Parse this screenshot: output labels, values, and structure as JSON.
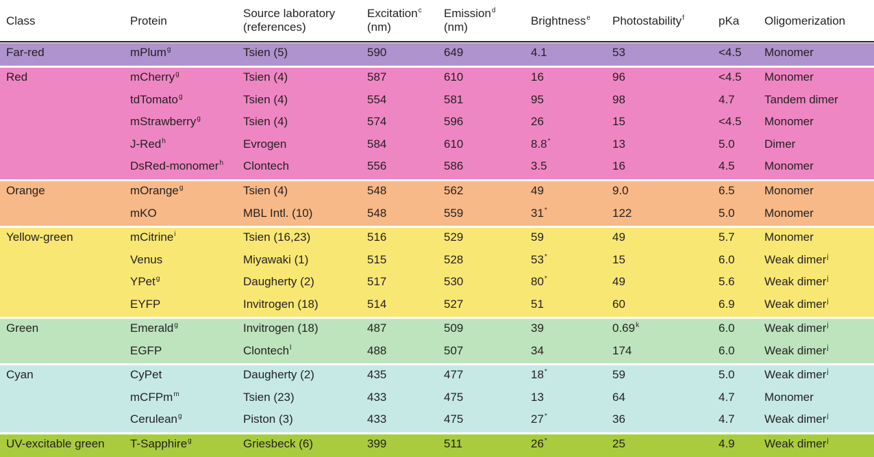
{
  "colors": {
    "Far-red": "#ae93cf",
    "Red": "#ef86c4",
    "Orange": "#f7b987",
    "Yellow-green": "#f9e774",
    "Green": "#bde4bd",
    "Cyan": "#c6e9e6",
    "UV-excitable green": "#a8cc3d"
  },
  "headers": [
    {
      "text": "Class",
      "sup": ""
    },
    {
      "text": "Protein",
      "sup": ""
    },
    {
      "text": "Source laboratory\n(references)",
      "sup": ""
    },
    {
      "text": "Excitation\n(nm)",
      "sup": "c"
    },
    {
      "text": "Emission\n(nm)",
      "sup": "d"
    },
    {
      "text": "Brightness",
      "sup": "e"
    },
    {
      "text": "Photostability",
      "sup": "f"
    },
    {
      "text": "pKa",
      "sup": ""
    },
    {
      "text": "Oligomerization",
      "sup": ""
    }
  ],
  "groups": [
    {
      "class": "Far-red",
      "rows": [
        {
          "protein": "mPlum",
          "psup": "g",
          "source": "Tsien (5)",
          "ssup": "",
          "excitation": "590",
          "emission": "649",
          "brightness": "4.1",
          "bsup": "",
          "photostability": "53",
          "phsup": "",
          "pka": "<4.5",
          "oligomerization": "Monomer",
          "osup": ""
        }
      ]
    },
    {
      "class": "Red",
      "rows": [
        {
          "protein": "mCherry",
          "psup": "g",
          "source": "Tsien (4)",
          "ssup": "",
          "excitation": "587",
          "emission": "610",
          "brightness": "16",
          "bsup": "",
          "photostability": "96",
          "phsup": "",
          "pka": "<4.5",
          "oligomerization": "Monomer",
          "osup": ""
        },
        {
          "protein": "tdTomato",
          "psup": "g",
          "source": "Tsien (4)",
          "ssup": "",
          "excitation": "554",
          "emission": "581",
          "brightness": "95",
          "bsup": "",
          "photostability": "98",
          "phsup": "",
          "pka": "4.7",
          "oligomerization": "Tandem dimer",
          "osup": ""
        },
        {
          "protein": "mStrawberry",
          "psup": "g",
          "source": "Tsien (4)",
          "ssup": "",
          "excitation": "574",
          "emission": "596",
          "brightness": "26",
          "bsup": "",
          "photostability": "15",
          "phsup": "",
          "pka": "<4.5",
          "oligomerization": "Monomer",
          "osup": ""
        },
        {
          "protein": "J-Red",
          "psup": "h",
          "source": "Evrogen",
          "ssup": "",
          "excitation": "584",
          "emission": "610",
          "brightness": "8.8",
          "bsup": "*",
          "photostability": "13",
          "phsup": "",
          "pka": "5.0",
          "oligomerization": "Dimer",
          "osup": ""
        },
        {
          "protein": "DsRed-monomer",
          "psup": "h",
          "source": "Clontech",
          "ssup": "",
          "excitation": "556",
          "emission": "586",
          "brightness": "3.5",
          "bsup": "",
          "photostability": "16",
          "phsup": "",
          "pka": "4.5",
          "oligomerization": "Monomer",
          "osup": ""
        }
      ]
    },
    {
      "class": "Orange",
      "rows": [
        {
          "protein": "mOrange",
          "psup": "g",
          "source": "Tsien (4)",
          "ssup": "",
          "excitation": "548",
          "emission": "562",
          "brightness": "49",
          "bsup": "",
          "photostability": "9.0",
          "phsup": "",
          "pka": "6.5",
          "oligomerization": "Monomer",
          "osup": ""
        },
        {
          "protein": "mKO",
          "psup": "",
          "source": "MBL Intl. (10)",
          "ssup": "",
          "excitation": "548",
          "emission": "559",
          "brightness": "31",
          "bsup": "*",
          "photostability": "122",
          "phsup": "",
          "pka": "5.0",
          "oligomerization": "Monomer",
          "osup": ""
        }
      ]
    },
    {
      "class": "Yellow-green",
      "rows": [
        {
          "protein": "mCitrine",
          "psup": "i",
          "source": "Tsien (16,23)",
          "ssup": "",
          "excitation": "516",
          "emission": "529",
          "brightness": "59",
          "bsup": "",
          "photostability": "49",
          "phsup": "",
          "pka": "5.7",
          "oligomerization": "Monomer",
          "osup": ""
        },
        {
          "protein": "Venus",
          "psup": "",
          "source": "Miyawaki (1)",
          "ssup": "",
          "excitation": "515",
          "emission": "528",
          "brightness": "53",
          "bsup": "*",
          "photostability": "15",
          "phsup": "",
          "pka": "6.0",
          "oligomerization": "Weak dimer",
          "osup": "j"
        },
        {
          "protein": "YPet",
          "psup": "g",
          "source": "Daugherty (2)",
          "ssup": "",
          "excitation": "517",
          "emission": "530",
          "brightness": "80",
          "bsup": "*",
          "photostability": "49",
          "phsup": "",
          "pka": "5.6",
          "oligomerization": "Weak dimer",
          "osup": "j"
        },
        {
          "protein": "EYFP",
          "psup": "",
          "source": "Invitrogen (18)",
          "ssup": "",
          "excitation": "514",
          "emission": "527",
          "brightness": "51",
          "bsup": "",
          "photostability": "60",
          "phsup": "",
          "pka": "6.9",
          "oligomerization": "Weak dimer",
          "osup": "j"
        }
      ]
    },
    {
      "class": "Green",
      "rows": [
        {
          "protein": "Emerald",
          "psup": "g",
          "source": "Invitrogen (18)",
          "ssup": "",
          "excitation": "487",
          "emission": "509",
          "brightness": "39",
          "bsup": "",
          "photostability": "0.69",
          "phsup": "k",
          "pka": "6.0",
          "oligomerization": "Weak dimer",
          "osup": "j"
        },
        {
          "protein": "EGFP",
          "psup": "",
          "source": "Clontech",
          "ssup": "l",
          "excitation": "488",
          "emission": "507",
          "brightness": "34",
          "bsup": "",
          "photostability": "174",
          "phsup": "",
          "pka": "6.0",
          "oligomerization": "Weak dimer",
          "osup": "j"
        }
      ]
    },
    {
      "class": "Cyan",
      "rows": [
        {
          "protein": "CyPet",
          "psup": "",
          "source": "Daugherty (2)",
          "ssup": "",
          "excitation": "435",
          "emission": "477",
          "brightness": "18",
          "bsup": "*",
          "photostability": "59",
          "phsup": "",
          "pka": "5.0",
          "oligomerization": "Weak dimer",
          "osup": "j"
        },
        {
          "protein": "mCFPm",
          "psup": "m",
          "source": "Tsien (23)",
          "ssup": "",
          "excitation": "433",
          "emission": "475",
          "brightness": "13",
          "bsup": "",
          "photostability": "64",
          "phsup": "",
          "pka": "4.7",
          "oligomerization": "Monomer",
          "osup": ""
        },
        {
          "protein": "Cerulean",
          "psup": "g",
          "source": "Piston (3)",
          "ssup": "",
          "excitation": "433",
          "emission": "475",
          "brightness": "27",
          "bsup": "*",
          "photostability": "36",
          "phsup": "",
          "pka": "4.7",
          "oligomerization": "Weak dimer",
          "osup": "j"
        }
      ]
    },
    {
      "class": "UV-excitable green",
      "rows": [
        {
          "protein": "T-Sapphire",
          "psup": "g",
          "source": "Griesbeck (6)",
          "ssup": "",
          "excitation": "399",
          "emission": "511",
          "brightness": "26",
          "bsup": "*",
          "photostability": "25",
          "phsup": "",
          "pka": "4.9",
          "oligomerization": "Weak dimer",
          "osup": "j"
        }
      ]
    }
  ]
}
